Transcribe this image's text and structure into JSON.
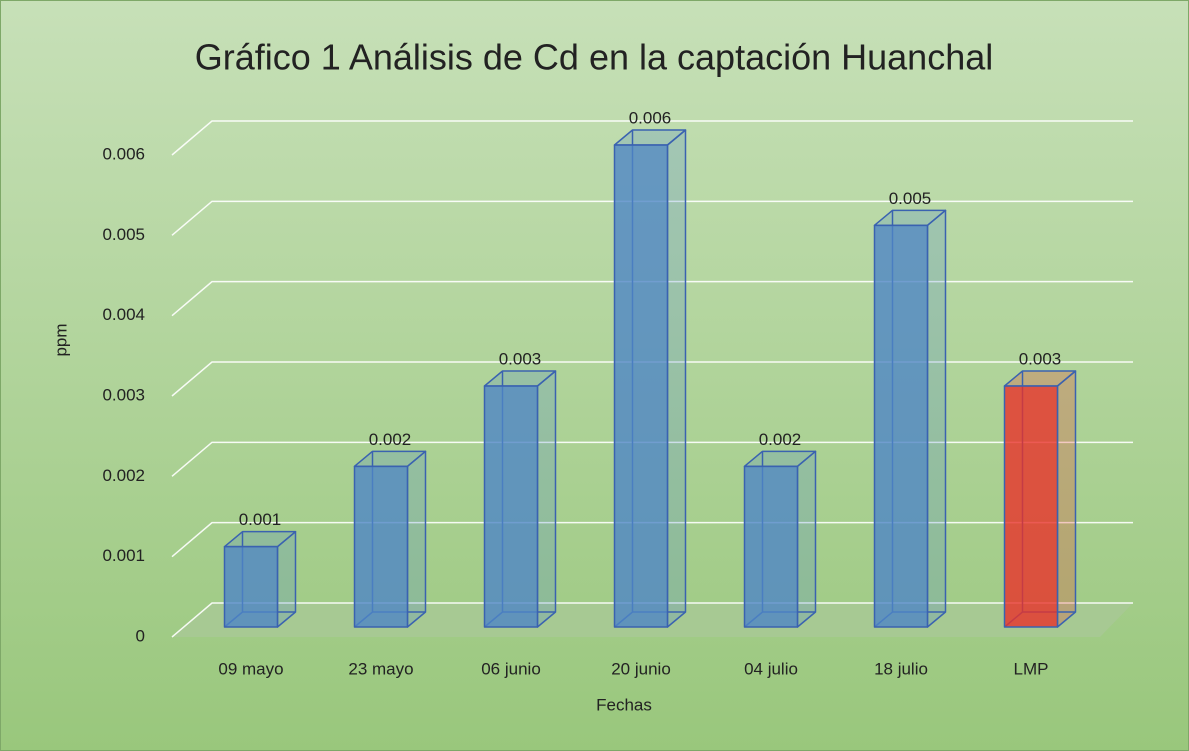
{
  "chart_data": {
    "type": "bar3d",
    "title": "Gráfico 1 Análisis de Cd en la captación Huanchal",
    "x_label": "Fechas",
    "y_label": "ppm",
    "categories": [
      "09 mayo",
      "23 mayo",
      "06 junio",
      "20 junio",
      "04 julio",
      "18 julio",
      "LMP"
    ],
    "values": [
      0.001,
      0.002,
      0.003,
      0.006,
      0.002,
      0.005,
      0.003
    ],
    "colors": [
      "#4f86c6",
      "#4f86c6",
      "#4f86c6",
      "#4f86c6",
      "#4f86c6",
      "#4f86c6",
      "#e8322a"
    ],
    "ylim": [
      0,
      0.006
    ],
    "yticks": [
      0,
      0.001,
      0.002,
      0.003,
      0.004,
      0.005,
      0.006
    ],
    "grid": true
  }
}
